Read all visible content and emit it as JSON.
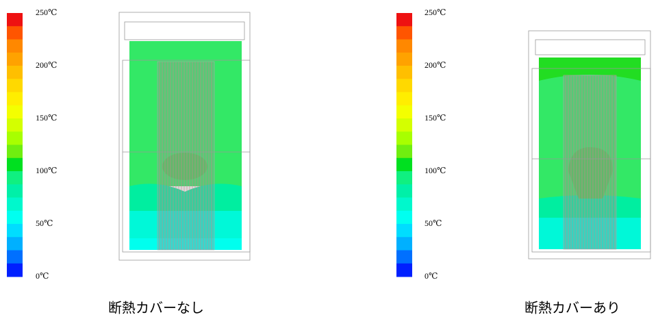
{
  "scales": [
    {
      "labels": [
        "250℃",
        "200℃",
        "150℃",
        "100℃",
        "50℃",
        "0℃"
      ]
    },
    {
      "labels": [
        "250℃",
        "200℃",
        "150℃",
        "100℃",
        "50℃",
        "0℃"
      ]
    }
  ],
  "scale_colors": [
    "#ee1111",
    "#ff5500",
    "#ff8800",
    "#ffa200",
    "#ffbf00",
    "#ffd900",
    "#ffee00",
    "#f4ff00",
    "#d4ff00",
    "#a8ff00",
    "#70ee10",
    "#00e020",
    "#10f080",
    "#00f0a8",
    "#00f8cc",
    "#00fff0",
    "#00ddff",
    "#00b0ff",
    "#0070ff",
    "#0020ff"
  ],
  "panels": [
    {
      "caption": "断熱カバーなし"
    },
    {
      "caption": "断熱カバーあり"
    }
  ]
}
